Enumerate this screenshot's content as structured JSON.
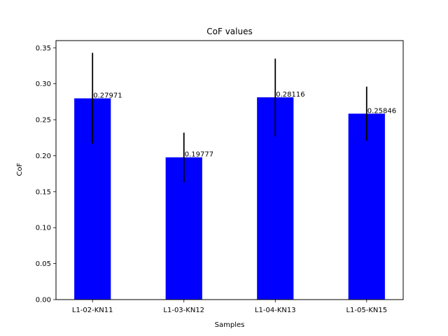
{
  "chart_data": {
    "type": "bar",
    "title": "CoF values",
    "xlabel": "Samples",
    "ylabel": "CoF",
    "categories": [
      "L1-02-KN11",
      "L1-03-KN12",
      "L1-04-KN13",
      "L1-05-KN15"
    ],
    "values": [
      0.27971,
      0.19777,
      0.28116,
      0.25846
    ],
    "value_labels": [
      "0.27971",
      "0.19777",
      "0.28116",
      "0.25846"
    ],
    "error_low": [
      0.217,
      0.163,
      0.227,
      0.221
    ],
    "error_high": [
      0.343,
      0.232,
      0.335,
      0.296
    ],
    "ylim": [
      0,
      0.36
    ],
    "yticks": [
      0.0,
      0.05,
      0.1,
      0.15,
      0.2,
      0.25,
      0.3,
      0.35
    ],
    "ytick_labels": [
      "0.00",
      "0.05",
      "0.10",
      "0.15",
      "0.20",
      "0.25",
      "0.30",
      "0.35"
    ],
    "bar_color": "#0000ff",
    "error_color": "#000000",
    "grid": false,
    "legend": "none"
  }
}
